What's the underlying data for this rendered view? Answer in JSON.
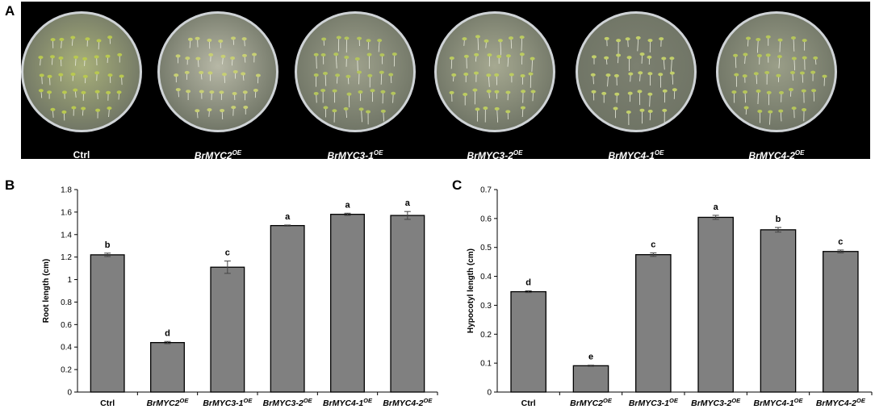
{
  "panel_a": {
    "letter": "A",
    "dishes": [
      {
        "label": "Ctrl",
        "sup": "",
        "tone": "#a9b17a",
        "seedling": "#b9c94f"
      },
      {
        "label": "BrMYC2",
        "sup": "OE",
        "tone": "#b7b8a6",
        "seedling": "#c7cf74"
      },
      {
        "label": "BrMYC3-1",
        "sup": "OE",
        "tone": "#9ea18c",
        "seedling": "#b4c55c"
      },
      {
        "label": "BrMYC3-2",
        "sup": "OE",
        "tone": "#a6a991",
        "seedling": "#bccc60"
      },
      {
        "label": "BrMYC4-1",
        "sup": "OE",
        "tone": "#7c8070",
        "seedling": "#c2cf6a"
      },
      {
        "label": "BrMYC4-2",
        "sup": "OE",
        "tone": "#9a9e88",
        "seedling": "#b6c65a"
      }
    ]
  },
  "panel_b": {
    "letter": "B"
  },
  "panel_c": {
    "letter": "C"
  },
  "chart_data": [
    {
      "type": "bar",
      "categories": [
        {
          "name": "Ctrl",
          "sup": ""
        },
        {
          "name": "BrMYC2",
          "sup": "OE"
        },
        {
          "name": "BrMYC3-1",
          "sup": "OE"
        },
        {
          "name": "BrMYC3-2",
          "sup": "OE"
        },
        {
          "name": "BrMYC4-1",
          "sup": "OE"
        },
        {
          "name": "BrMYC4-2",
          "sup": "OE"
        }
      ],
      "values": [
        1.22,
        0.44,
        1.11,
        1.48,
        1.58,
        1.57
      ],
      "errors": [
        0.015,
        0.01,
        0.055,
        0.005,
        0.01,
        0.035
      ],
      "significance": [
        "b",
        "d",
        "c",
        "a",
        "a",
        "a"
      ],
      "ylabel": "Root length (cm)",
      "ylim": [
        0,
        1.8
      ],
      "yticks": [
        "0",
        "0.2",
        "0.4",
        "0.6",
        "0.8",
        "1",
        "1.2",
        "1.4",
        "1.6",
        "1.8"
      ],
      "grid": false,
      "bar_color": "#808080"
    },
    {
      "type": "bar",
      "categories": [
        {
          "name": "Ctrl",
          "sup": ""
        },
        {
          "name": "BrMYC2",
          "sup": "OE"
        },
        {
          "name": "BrMYC3-1",
          "sup": "OE"
        },
        {
          "name": "BrMYC3-2",
          "sup": "OE"
        },
        {
          "name": "BrMYC4-1",
          "sup": "OE"
        },
        {
          "name": "BrMYC4-2",
          "sup": "OE"
        }
      ],
      "values": [
        0.347,
        0.091,
        0.475,
        0.604,
        0.561,
        0.486
      ],
      "errors": [
        0.003,
        0.002,
        0.006,
        0.007,
        0.008,
        0.005
      ],
      "significance": [
        "d",
        "e",
        "c",
        "a",
        "b",
        "c"
      ],
      "ylabel": "Hypocotyl length (cm)",
      "ylim": [
        0,
        0.7
      ],
      "yticks": [
        "0",
        "0.1",
        "0.2",
        "0.3",
        "0.4",
        "0.5",
        "0.6",
        "0.7"
      ],
      "grid": false,
      "bar_color": "#808080"
    }
  ]
}
